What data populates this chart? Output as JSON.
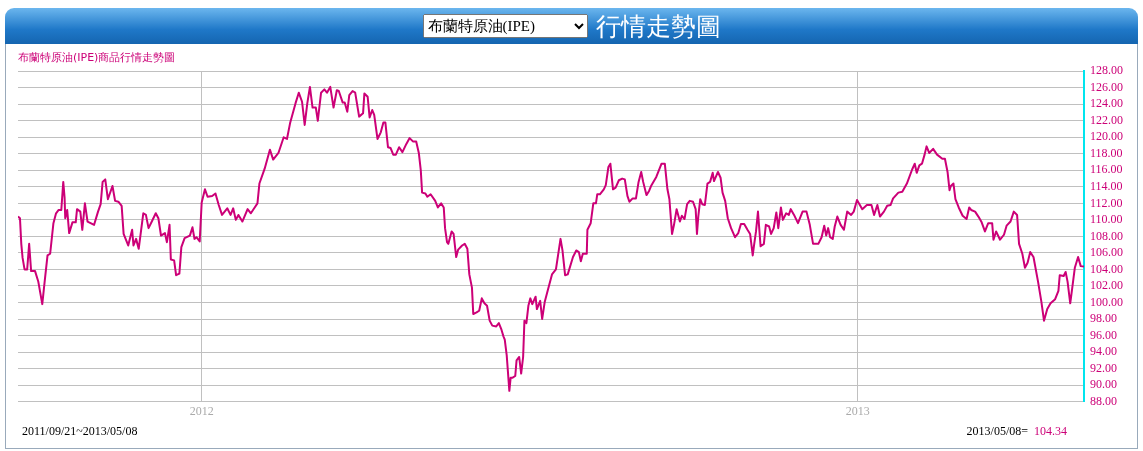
{
  "chart_data": {
    "type": "line",
    "title": "布蘭特原油(IPE)商品行情走勢圖",
    "annotations": [
      "布蘭特原油(IPE)",
      "行情走勢圖",
      "2011/09/21~2013/05/08",
      "2013/05/08=",
      "104.34"
    ],
    "xlim": [
      2011.72,
      2013.345
    ],
    "xticks": [
      {
        "value": 2012,
        "label": "2012"
      },
      {
        "value": 2013,
        "label": "2013"
      }
    ],
    "ylim": [
      88,
      128
    ],
    "yticks": [
      {
        "value": 88,
        "label": "88.00"
      },
      {
        "value": 90,
        "label": "90.00"
      },
      {
        "value": 92,
        "label": "92.00"
      },
      {
        "value": 94,
        "label": "94.00"
      },
      {
        "value": 96,
        "label": "96.00"
      },
      {
        "value": 98,
        "label": "98.00"
      },
      {
        "value": 100,
        "label": "100.00"
      },
      {
        "value": 102,
        "label": "102.00"
      },
      {
        "value": 104,
        "label": "104.00"
      },
      {
        "value": 106,
        "label": "106.00"
      },
      {
        "value": 108,
        "label": "108.00"
      },
      {
        "value": 110,
        "label": "110.00"
      },
      {
        "value": 112,
        "label": "112.00"
      },
      {
        "value": 114,
        "label": "114.00"
      },
      {
        "value": 116,
        "label": "116.00"
      },
      {
        "value": 118,
        "label": "118.00"
      },
      {
        "value": 120,
        "label": "120.00"
      },
      {
        "value": 122,
        "label": "122.00"
      },
      {
        "value": 124,
        "label": "124.00"
      },
      {
        "value": 126,
        "label": "126.00"
      },
      {
        "value": 128,
        "label": "128.00"
      }
    ],
    "grid": true,
    "legend": false,
    "marker": "none",
    "line_style": "solid",
    "series": [
      {
        "color": "#cc0077",
        "x": [
          2011.72,
          2011.723,
          2011.725,
          2011.727,
          2011.73,
          2011.734,
          2011.737,
          2011.74,
          2011.746,
          2011.751,
          2011.757,
          2011.761,
          2011.765,
          2011.769,
          2011.774,
          2011.778,
          2011.782,
          2011.786,
          2011.789,
          2011.791,
          2011.792,
          2011.795,
          2011.798,
          2011.803,
          2011.808,
          2011.81,
          2011.815,
          2011.818,
          2011.822,
          2011.826,
          2011.836,
          2011.842,
          2011.846,
          2011.849,
          2011.853,
          2011.857,
          2011.864,
          2011.868,
          2011.873,
          2011.878,
          2011.881,
          2011.888,
          2011.894,
          2011.896,
          2011.9,
          2011.904,
          2011.911,
          2011.915,
          2011.919,
          2011.924,
          2011.93,
          2011.934,
          2011.938,
          2011.944,
          2011.947,
          2011.951,
          2011.953,
          2011.958,
          2011.961,
          2011.966,
          2011.969,
          2011.974,
          2011.982,
          2011.986,
          2011.989,
          2011.992,
          2011.997,
          2012.0,
          2012.005,
          2012.009,
          2012.016,
          2012.021,
          2012.026,
          2012.031,
          2012.039,
          2012.044,
          2012.048,
          2012.052,
          2012.056,
          2012.062,
          2012.07,
          2012.075,
          2012.085,
          2012.088,
          2012.096,
          2012.104,
          2012.109,
          2012.117,
          2012.125,
          2012.13,
          2012.135,
          2012.143,
          2012.148,
          2012.153,
          2012.157,
          2012.161,
          2012.165,
          2012.169,
          2012.174,
          2012.177,
          2012.182,
          2012.187,
          2012.191,
          2012.196,
          2012.201,
          2012.206,
          2012.209,
          2012.215,
          2012.218,
          2012.222,
          2012.225,
          2012.23,
          2012.234,
          2012.24,
          2012.246,
          2012.248,
          2012.253,
          2012.256,
          2012.26,
          2012.263,
          2012.268,
          2012.273,
          2012.277,
          2012.28,
          2012.284,
          2012.288,
          2012.292,
          2012.296,
          2012.301,
          2012.306,
          2012.312,
          2012.317,
          2012.322,
          2012.327,
          2012.331,
          2012.334,
          2012.336,
          2012.341,
          2012.344,
          2012.349,
          2012.356,
          2012.36,
          2012.365,
          2012.369,
          2012.371,
          2012.374,
          2012.376,
          2012.381,
          2012.384,
          2012.388,
          2012.391,
          2012.397,
          2012.401,
          2012.405,
          2012.408,
          2012.412,
          2012.414,
          2012.419,
          2012.423,
          2012.427,
          2012.431,
          2012.435,
          2012.439,
          2012.443,
          2012.449,
          2012.453,
          2012.457,
          2012.46,
          2012.462,
          2012.465,
          2012.469,
          2012.471,
          2012.474,
          2012.478,
          2012.48,
          2012.484,
          2012.487,
          2012.49,
          2012.492,
          2012.495,
          2012.498,
          2012.501,
          2012.504,
          2012.509,
          2012.511,
          2012.516,
          2012.519,
          2012.523,
          2012.527,
          2012.534,
          2012.54,
          2012.547,
          2012.55,
          2012.554,
          2012.558,
          2012.566,
          2012.571,
          2012.575,
          2012.578,
          2012.581,
          2012.587,
          2012.588,
          2012.593,
          2012.597,
          2012.601,
          2012.603,
          2012.607,
          2012.613,
          2012.616,
          2012.62,
          2012.623,
          2012.627,
          2012.631,
          2012.636,
          2012.641,
          2012.645,
          2012.649,
          2012.652,
          2012.657,
          2012.662,
          2012.666,
          2012.67,
          2012.673,
          2012.678,
          2012.682,
          2012.685,
          2012.693,
          2012.698,
          2012.701,
          2012.706,
          2012.71,
          2012.713,
          2012.717,
          2012.72,
          2012.724,
          2012.729,
          2012.732,
          2012.736,
          2012.74,
          2012.744,
          2012.749,
          2012.753,
          2012.755,
          2012.757,
          2012.76,
          2012.763,
          2012.767,
          2012.771,
          2012.775,
          2012.779,
          2012.781,
          2012.787,
          2012.791,
          2012.794,
          2012.798,
          2012.802,
          2012.807,
          2012.813,
          2012.818,
          2012.822,
          2012.827,
          2012.832,
          2012.836,
          2012.84,
          2012.842,
          2012.845,
          2012.848,
          2012.852,
          2012.857,
          2012.86,
          2012.865,
          2012.868,
          2012.872,
          2012.876,
          2012.879,
          2012.883,
          2012.886,
          2012.891,
          2012.895,
          2012.898,
          2012.903,
          2012.909,
          2012.916,
          2012.922,
          2012.927,
          2012.932,
          2012.94,
          2012.945,
          2012.949,
          2012.952,
          2012.955,
          2012.958,
          2012.962,
          2012.965,
          2012.969,
          2012.974,
          2012.979,
          2012.984,
          2012.99,
          2012.994,
          2012.999,
          2013.007,
          2013.014,
          2013.021,
          2013.025,
          2013.03,
          2013.034,
          2013.04,
          2013.045,
          2013.05,
          2013.054,
          2013.062,
          2013.068,
          2013.075,
          2013.083,
          2013.087,
          2013.09,
          2013.094,
          2013.098,
          2013.102,
          2013.105,
          2013.109,
          2013.115,
          2013.121,
          2013.129,
          2013.133,
          2013.137,
          2013.14,
          2013.142,
          2013.146,
          2013.149,
          2013.154,
          2013.16,
          2013.166,
          2013.17,
          2013.173,
          2013.179,
          2013.184,
          2013.189,
          2013.194,
          2013.199,
          2013.205,
          2013.207,
          2013.211,
          2013.217,
          2013.223,
          2013.227,
          2013.233,
          2013.238,
          2013.243,
          2013.246,
          2013.251,
          2013.255,
          2013.259,
          2013.263,
          2013.268,
          2013.275,
          2013.28,
          2013.284,
          2013.289,
          2013.294,
          2013.301,
          2013.306,
          2013.308,
          2013.314,
          2013.317,
          2013.32,
          2013.324,
          2013.327,
          2013.331,
          2013.336,
          2013.34,
          2013.345
        ],
        "values": [
          110.4,
          110.2,
          107.1,
          105.4,
          104.0,
          104.0,
          107.1,
          103.8,
          103.8,
          102.5,
          99.8,
          102.8,
          105.7,
          105.9,
          109.6,
          110.8,
          111.2,
          111.2,
          114.6,
          112.7,
          110.2,
          111.2,
          108.4,
          109.7,
          109.7,
          111.3,
          111.0,
          108.8,
          112.0,
          109.8,
          109.4,
          111.0,
          111.9,
          114.6,
          114.9,
          112.5,
          114.1,
          112.3,
          112.2,
          111.7,
          108.3,
          106.9,
          108.8,
          106.9,
          107.7,
          106.5,
          110.8,
          110.6,
          109.0,
          109.8,
          110.8,
          110.2,
          108.1,
          108.4,
          107.3,
          109.4,
          105.2,
          105.1,
          103.3,
          103.5,
          106.7,
          107.8,
          108.1,
          109.1,
          107.7,
          107.9,
          107.4,
          112.1,
          113.7,
          112.8,
          112.9,
          113.2,
          111.8,
          110.6,
          111.4,
          110.6,
          111.4,
          110.0,
          110.6,
          109.8,
          111.3,
          110.8,
          112.0,
          114.4,
          116.2,
          118.5,
          117.3,
          118.1,
          120.0,
          119.8,
          121.8,
          124.1,
          125.4,
          124.3,
          121.5,
          124.1,
          126.1,
          123.6,
          123.6,
          122.0,
          125.4,
          125.8,
          125.4,
          126.1,
          123.6,
          125.7,
          125.6,
          124.2,
          124.2,
          123.1,
          125.1,
          125.6,
          125.4,
          122.5,
          122.9,
          125.3,
          124.9,
          122.4,
          123.3,
          122.7,
          119.8,
          120.6,
          121.8,
          121.8,
          118.8,
          118.7,
          117.9,
          117.9,
          118.8,
          118.2,
          119.2,
          119.9,
          119.5,
          119.5,
          118.1,
          116.0,
          113.3,
          113.2,
          112.8,
          113.1,
          112.3,
          111.5,
          112.0,
          111.5,
          109.0,
          107.3,
          107.1,
          108.6,
          108.3,
          105.5,
          106.4,
          106.9,
          107.1,
          106.5,
          103.4,
          101.8,
          98.6,
          98.8,
          99.0,
          100.5,
          99.9,
          99.6,
          97.8,
          97.2,
          97.1,
          97.5,
          96.7,
          95.9,
          95.5,
          93.6,
          89.3,
          90.9,
          90.9,
          91.1,
          93.0,
          93.4,
          91.4,
          93.4,
          97.8,
          97.5,
          99.6,
          100.5,
          99.8,
          100.7,
          99.2,
          100.2,
          98.0,
          100.1,
          101.3,
          103.4,
          104.0,
          107.7,
          106.3,
          103.3,
          103.4,
          105.5,
          106.3,
          106.1,
          105.0,
          105.9,
          105.9,
          108.8,
          109.6,
          112.0,
          112.0,
          113.1,
          113.1,
          113.7,
          114.2,
          116.4,
          116.8,
          113.7,
          113.9,
          114.8,
          115.0,
          114.9,
          112.9,
          112.2,
          112.6,
          112.6,
          114.6,
          115.8,
          114.6,
          113.0,
          113.5,
          114.1,
          115.2,
          116.2,
          116.8,
          116.8,
          113.7,
          112.5,
          108.3,
          109.4,
          111.3,
          109.8,
          110.5,
          110.1,
          111.9,
          112.3,
          112.2,
          111.3,
          108.3,
          110.4,
          112.5,
          111.9,
          111.8,
          114.4,
          114.6,
          115.7,
          114.7,
          115.8,
          115.1,
          113.3,
          112.3,
          110.2,
          109.0,
          107.9,
          108.4,
          109.5,
          109.5,
          108.8,
          108.3,
          105.7,
          106.9,
          108.6,
          111.0,
          106.8,
          107.1,
          109.4,
          109.2,
          108.3,
          109.0,
          110.9,
          109.0,
          111.5,
          110.0,
          110.8,
          110.6,
          111.3,
          110.6,
          109.6,
          111.0,
          111.0,
          109.4,
          107.1,
          107.1,
          107.9,
          109.3,
          108.1,
          109.0,
          107.9,
          107.7,
          109.2,
          110.4,
          109.4,
          108.8,
          111.0,
          110.6,
          111.0,
          112.4,
          111.3,
          111.8,
          111.8,
          110.6,
          111.8,
          110.4,
          111.0,
          111.7,
          111.8,
          112.6,
          113.3,
          113.4,
          114.4,
          116.1,
          116.8,
          115.7,
          116.6,
          116.8,
          117.9,
          118.9,
          118.1,
          118.6,
          117.9,
          117.4,
          117.4,
          115.8,
          113.6,
          114.1,
          114.4,
          112.5,
          111.5,
          110.5,
          110.1,
          111.5,
          111.2,
          111.0,
          110.4,
          109.7,
          108.6,
          109.6,
          109.6,
          107.6,
          108.6,
          107.6,
          108.2,
          109.3,
          109.8,
          111.0,
          110.6,
          107.1,
          105.9,
          104.2,
          104.8,
          106.1,
          105.5,
          102.5,
          100.1,
          97.8,
          99.2,
          99.9,
          100.4,
          101.4,
          103.3,
          103.2,
          103.7,
          102.5,
          99.9,
          101.7,
          104.2,
          105.5,
          104.4,
          104.34
        ]
      }
    ]
  }
}
